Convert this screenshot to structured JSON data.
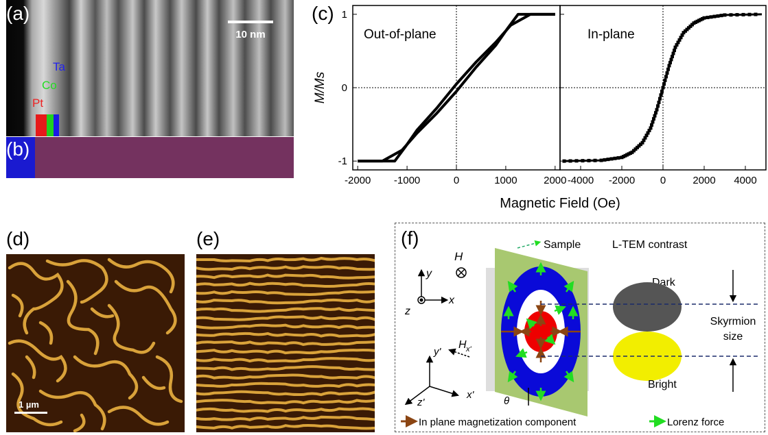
{
  "panels": {
    "a": {
      "label": "(a)",
      "scale_bar": "10 nm",
      "layers": [
        "Ta",
        "Co",
        "Pt"
      ],
      "layer_colors": [
        "#1a1ae6",
        "#1fd11f",
        "#e61a1a"
      ]
    },
    "b": {
      "label": "(b)"
    },
    "c": {
      "label": "(c)"
    },
    "d": {
      "label": "(d)",
      "scale_bar": "1 µm"
    },
    "e": {
      "label": "(e)"
    },
    "f": {
      "label": "(f)",
      "sample": "Sample",
      "contrast_title": "L-TEM contrast",
      "dark": "Dark",
      "bright": "Bright",
      "skyrmion_size": [
        "Skyrmion",
        "size"
      ],
      "h_field": "H",
      "h_field_tilted": "H",
      "h_sub": "x'",
      "axes": {
        "y": "y",
        "x": "x",
        "z": "z",
        "y_prime": "y'",
        "x_prime": "x'",
        "z_prime": "z'"
      },
      "theta": "θ",
      "legend": [
        "In plane magnetization component",
        "Lorenz force"
      ],
      "colors": {
        "magnetization": "#8b4513",
        "lorenz": "#22dd22",
        "ring": "#0a0ad8",
        "core": "#ee0000",
        "sample": "#a8c870",
        "dark": "#555555",
        "bright": "#f2ee00"
      }
    }
  },
  "chart_data": [
    {
      "type": "line",
      "title": "Out-of-plane",
      "xlabel": "Magnetic Field (Oe)",
      "ylabel": "M/Ms",
      "xlim": [
        -2100,
        2100
      ],
      "ylim": [
        -1.12,
        1.12
      ],
      "xticks": [
        "-2000",
        "-1000",
        "0",
        "1000",
        "2000"
      ],
      "yticks": [
        "-1",
        "0",
        "1"
      ],
      "series": [
        {
          "x": [
            -2000,
            -1500,
            -1100,
            -800,
            -400,
            0,
            400,
            800,
            1050,
            1250,
            2000
          ],
          "y": [
            -1,
            -1,
            -0.85,
            -0.62,
            -0.35,
            -0.05,
            0.28,
            0.58,
            0.82,
            1,
            1
          ]
        },
        {
          "x": [
            -2000,
            -1250,
            -1050,
            -800,
            -400,
            0,
            400,
            800,
            1100,
            1500,
            2000
          ],
          "y": [
            -1,
            -1,
            -0.82,
            -0.58,
            -0.28,
            0.05,
            0.35,
            0.62,
            0.85,
            1,
            1
          ]
        }
      ]
    },
    {
      "type": "line",
      "title": "In-plane",
      "xlabel": "Magnetic Field (Oe)",
      "ylabel": "M/Ms",
      "xlim": [
        -5000,
        5000
      ],
      "ylim": [
        -1.12,
        1.12
      ],
      "xticks": [
        "-4000",
        "-2000",
        "0",
        "2000",
        "4000"
      ],
      "yticks": [
        "-1",
        "0",
        "1"
      ],
      "series": [
        {
          "x": [
            -4800,
            -3000,
            -2000,
            -1500,
            -1000,
            -600,
            -300,
            0,
            300,
            600,
            1000,
            1500,
            2000,
            3000,
            4800
          ],
          "y": [
            -1,
            -0.99,
            -0.95,
            -0.88,
            -0.75,
            -0.55,
            -0.3,
            0,
            0.3,
            0.55,
            0.75,
            0.88,
            0.95,
            0.99,
            1
          ]
        }
      ]
    }
  ]
}
